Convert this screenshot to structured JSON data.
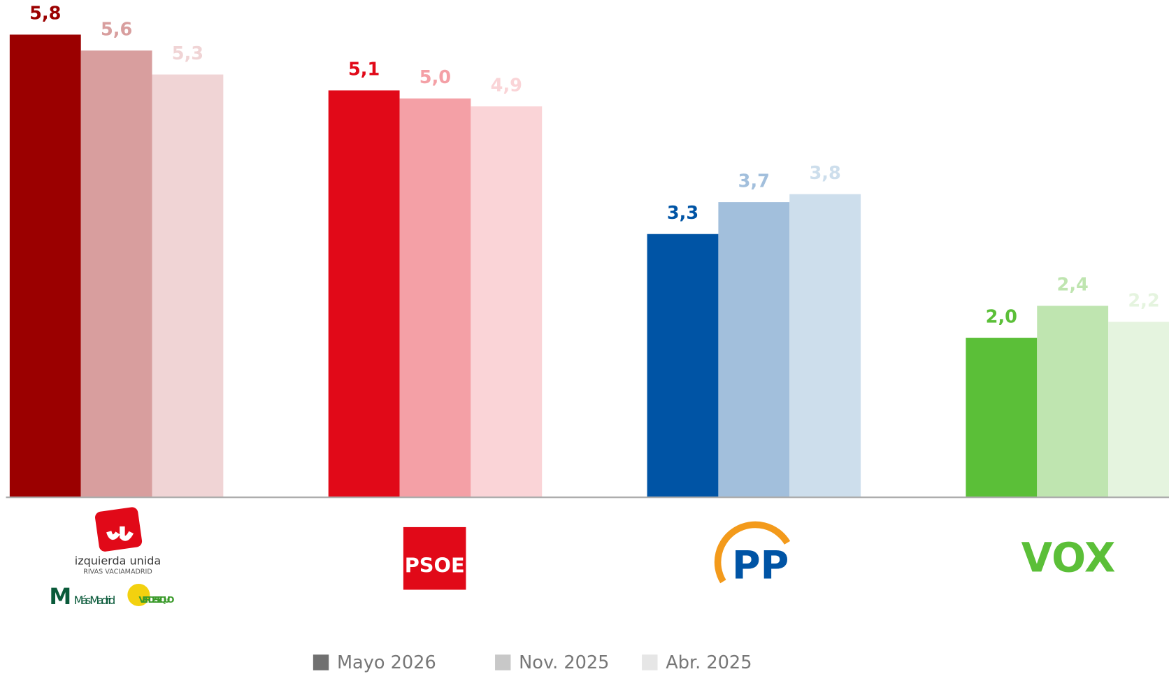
{
  "chart_data": {
    "type": "bar",
    "categories": [
      "izquierda unida",
      "PSOE",
      "PP",
      "VOX"
    ],
    "category_sublabels": [
      [
        "RIVAS VACIAMADRID",
        "Más Madrid",
        "VERDES EQUO"
      ],
      [],
      [],
      []
    ],
    "series": [
      {
        "name": "Mayo 2026",
        "color": "#707070",
        "colors": [
          "#9b0000",
          "#e10918",
          "#0054a5",
          "#5bbf38"
        ],
        "values": [
          5.8,
          5.1,
          3.3,
          2.0
        ],
        "value_labels": [
          "5,8",
          "5,1",
          "3,3",
          "2,0"
        ]
      },
      {
        "name": "Nov. 2025",
        "color": "#c8c8c8",
        "colors": [
          "#d89e9e",
          "#f4a0a6",
          "#a2bfdc",
          "#bfe5b0"
        ],
        "values": [
          5.6,
          5.0,
          3.7,
          2.4
        ],
        "value_labels": [
          "5,6",
          "5,0",
          "3,7",
          "2,4"
        ]
      },
      {
        "name": "Abr. 2025",
        "color": "#e6e6e6",
        "colors": [
          "#f0d4d5",
          "#fad4d7",
          "#cddeec",
          "#e5f4df"
        ],
        "values": [
          5.3,
          4.9,
          3.8,
          2.2
        ],
        "value_labels": [
          "5,3",
          "4,9",
          "3,8",
          "2,2"
        ]
      }
    ],
    "ylim": [
      0,
      6
    ]
  }
}
